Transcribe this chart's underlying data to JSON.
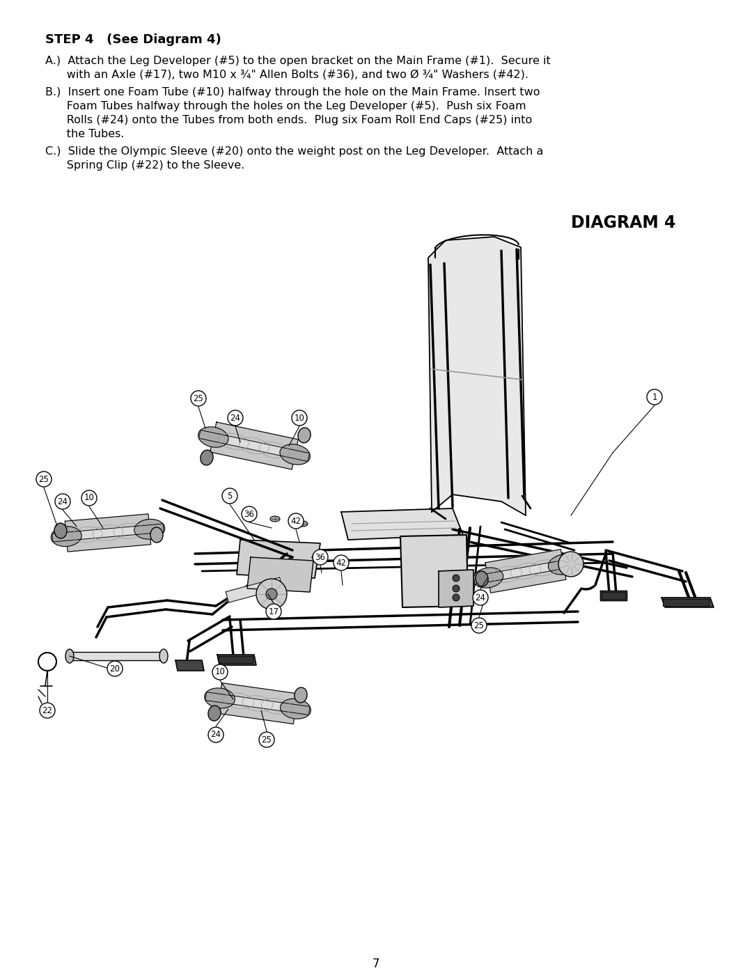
{
  "bg_color": "#ffffff",
  "title_step": "STEP 4   (See Diagram 4)",
  "line_a": "A.)  Attach the Leg Developer (#5) to the open bracket on the Main Frame (#1).  Secure it",
  "line_a2": "      with an Axle (#17), two M10 x ¾\" Allen Bolts (#36), and two Ø ¾\" Washers (#42).",
  "line_b": "B.)  Insert one Foam Tube (#10) halfway through the hole on the Main Frame. Insert two",
  "line_b2": "      Foam Tubes halfway through the holes on the Leg Developer (#5).  Push six Foam",
  "line_b3": "      Rolls (#24) onto the Tubes from both ends.  Plug six Foam Roll End Caps (#25) into",
  "line_b4": "      the Tubes.",
  "line_c": "C.)  Slide the Olympic Sleeve (#20) onto the weight post on the Leg Developer.  Attach a",
  "line_c2": "      Spring Clip (#22) to the Sleeve.",
  "diagram_title": "DIAGRAM 4",
  "page_number": "7",
  "text_color": "#000000",
  "line_color": "#000000",
  "gray_light": "#c8c8c8",
  "gray_med": "#999999",
  "gray_dark": "#444444",
  "lw_main": 1.5,
  "lw_thin": 0.8,
  "lw_thick": 2.2
}
